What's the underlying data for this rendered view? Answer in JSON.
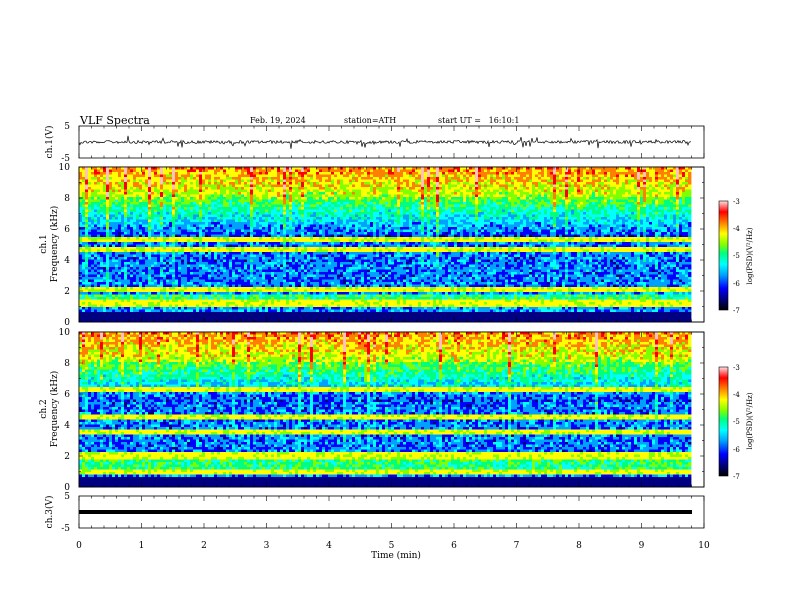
{
  "header": {
    "title": "VLF Spectra",
    "date": "Feb. 19, 2024",
    "station": "station=ATH",
    "start_ut": "start UT =   16:10:1"
  },
  "chart_data": {
    "type": "heatmap",
    "x_axis": {
      "label": "Time (min)",
      "range": [
        0,
        10
      ],
      "ticks": [
        "0",
        "1",
        "2",
        "3",
        "4",
        "5",
        "6",
        "7",
        "8",
        "9",
        "10"
      ]
    },
    "panels": [
      {
        "name": "ch.1 waveform",
        "ylabel": "ch.1(V)",
        "ylim": [
          -5,
          5
        ],
        "ytick_labels": [
          "5",
          "-5"
        ],
        "baseline": 0,
        "trace_color": "#000000"
      },
      {
        "name": "ch.1 spectrogram",
        "ylabel_top": "ch.1",
        "ylabel": "Frequency (kHz)",
        "ylim": [
          0,
          10
        ],
        "ytick_labels": [
          "0",
          "2",
          "4",
          "6",
          "8",
          "10"
        ],
        "colorbar": {
          "label": "log(PSD)(V²/Hz)",
          "range": [
            -7,
            -3
          ],
          "tick_labels": [
            "-3",
            "-4",
            "-5",
            "-6",
            "-7"
          ]
        },
        "bands_khz": [
          2.1,
          4.7,
          5.3,
          1.2
        ]
      },
      {
        "name": "ch.2 spectrogram",
        "ylabel_top": "ch.2",
        "ylabel": "Frequency (kHz)",
        "ylim": [
          0,
          10
        ],
        "ytick_labels": [
          "0",
          "2",
          "4",
          "6",
          "8",
          "10"
        ],
        "colorbar": {
          "label": "log(PSD)(V²/Hz)",
          "range": [
            -7,
            -3
          ],
          "tick_labels": [
            "-3",
            "-4",
            "-5",
            "-6",
            "-7"
          ]
        },
        "bands_khz": [
          2.0,
          3.5,
          4.5,
          6.3,
          1.0
        ]
      },
      {
        "name": "ch.3 waveform",
        "ylabel": "ch.3(V)",
        "ylim": [
          -5,
          5
        ],
        "ytick_labels": [
          "5",
          "-5"
        ],
        "baseline": 0,
        "trace_color": "#000000"
      }
    ],
    "data_end_min": 9.8,
    "grid": false,
    "colormap": [
      "#000000",
      "#000080",
      "#0000ff",
      "#00a0ff",
      "#00ffff",
      "#00ff80",
      "#80ff00",
      "#ffff00",
      "#ff8000",
      "#ff0000",
      "#ffc0c0"
    ]
  }
}
